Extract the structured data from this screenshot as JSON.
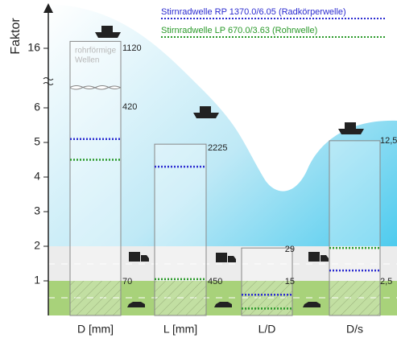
{
  "chart_data": {
    "type": "bar",
    "y_label": "Faktor",
    "categories": [
      "D [mm]",
      "L [mm]",
      "L/D",
      "D/s"
    ],
    "values": [
      16.2,
      4.95,
      1.95,
      5.05
    ],
    "series": [
      {
        "name": "Stirnradwelle RP 1370.0/6.05 (Radkörperwelle)",
        "color": "#2b2bd0",
        "values": [
          5.1,
          4.3,
          0.6,
          1.3
        ]
      },
      {
        "name": "Stirnradwelle LP 670.0/3.63 (Rohrwelle)",
        "color": "#2a9a2a",
        "values": [
          4.5,
          1.05,
          0.2,
          1.95
        ]
      }
    ],
    "ylim": [
      0,
      17
    ],
    "yticks": [
      1,
      2,
      3,
      4,
      5,
      6,
      16
    ],
    "axis_break": [
      6.5,
      15
    ],
    "annotation": [
      "rohrförmige",
      "Wellen"
    ],
    "bar_notes": [
      [
        "1120",
        "420",
        "70"
      ],
      [
        "2225",
        "450"
      ],
      [
        "29",
        "15"
      ],
      [
        "12,5",
        "2,5"
      ]
    ]
  }
}
